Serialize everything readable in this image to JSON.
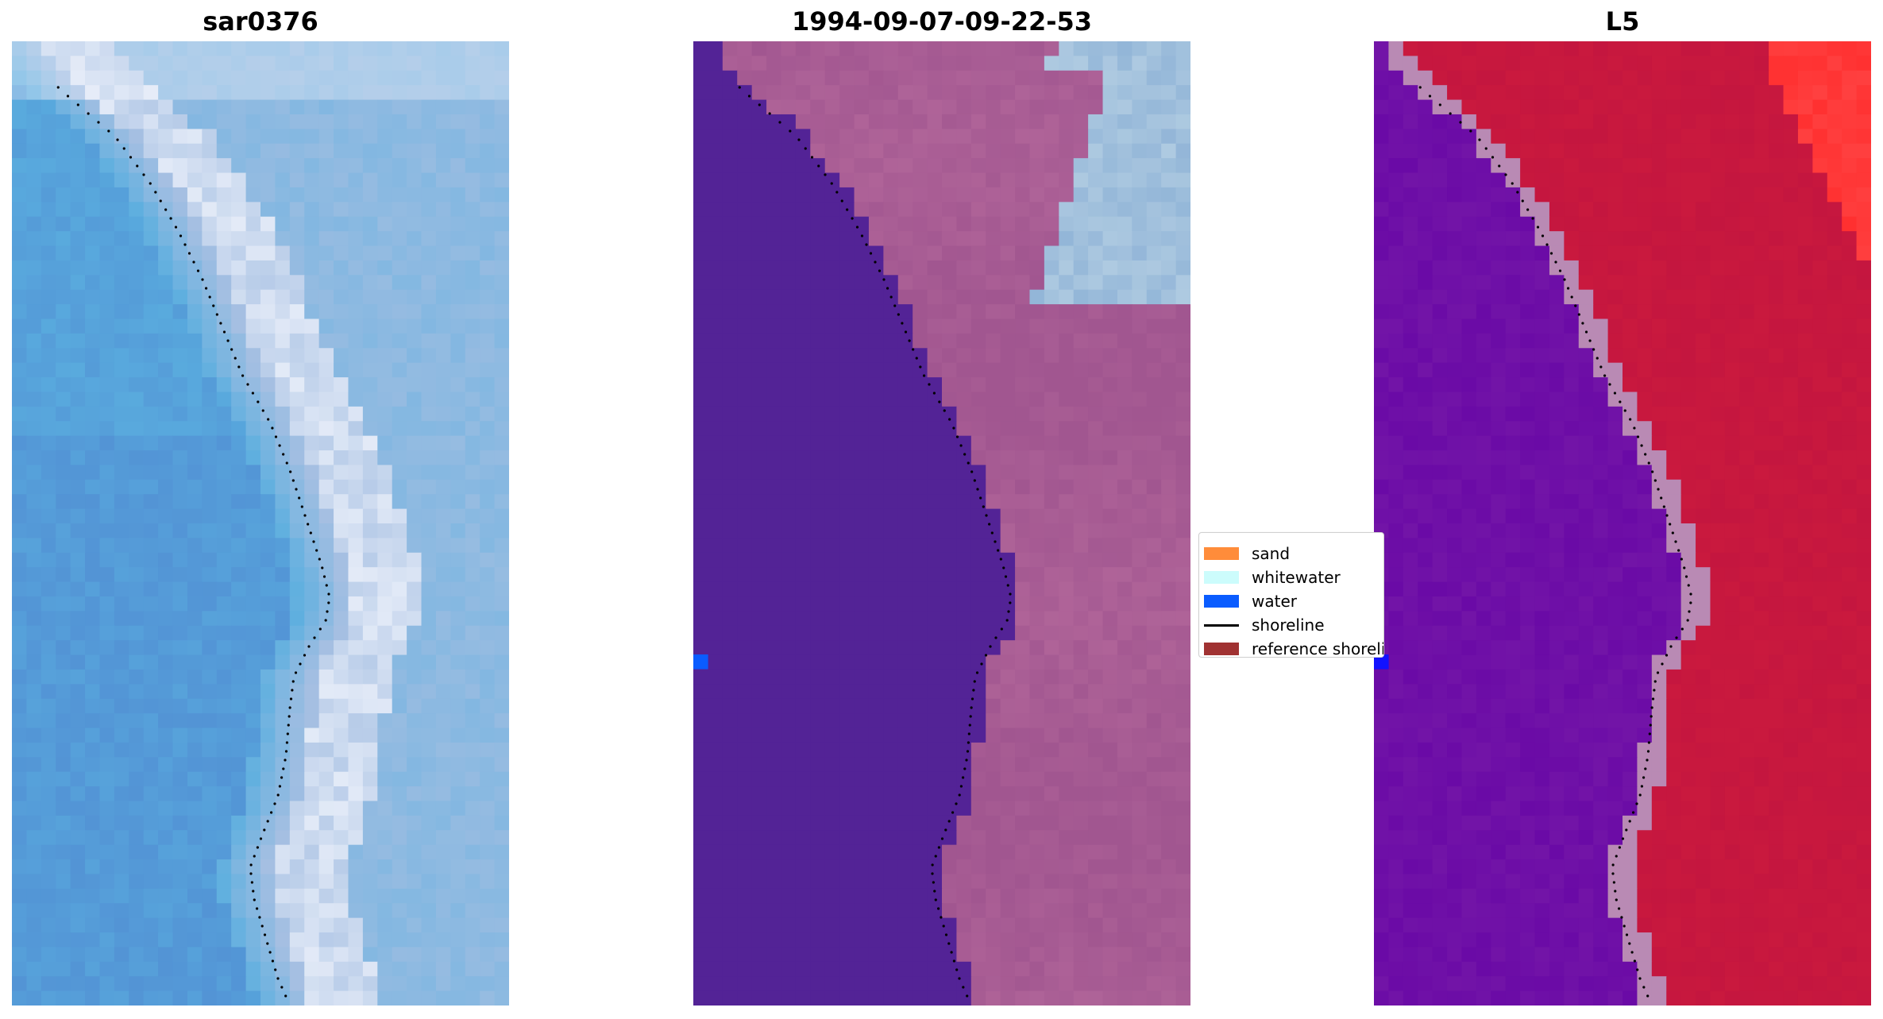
{
  "panels": [
    {
      "id": "rgb",
      "title": "sar0376",
      "colors": {
        "deep": "#4f86d0",
        "mid": "#5aaedf",
        "light": "#a5bfe2",
        "foam": "#eef2fb"
      }
    },
    {
      "id": "classified",
      "title": "1994-09-07-09-22-53",
      "colors": {
        "water": "#532396",
        "land": "#a15690",
        "land_light": "#b66a9c",
        "sky": "#93b6d8",
        "marker": "#0a5cff"
      }
    },
    {
      "id": "index",
      "title": "L5",
      "colors": {
        "water": "#6a0aa6",
        "land": "#c4163f",
        "land_bright": "#ff3030",
        "edge": "#b98ab4",
        "marker": "#1212ff"
      }
    }
  ],
  "legend": {
    "items": [
      {
        "label": "sand",
        "color": "#ff8c3a",
        "kind": "patch"
      },
      {
        "label": "whitewater",
        "color": "#ccfcfc",
        "kind": "patch"
      },
      {
        "label": "water",
        "color": "#0a5cff",
        "kind": "patch"
      },
      {
        "label": "shoreline",
        "color": "#000000",
        "kind": "line"
      },
      {
        "label": "reference shoreline",
        "color": "#a03232",
        "kind": "patch"
      }
    ]
  }
}
